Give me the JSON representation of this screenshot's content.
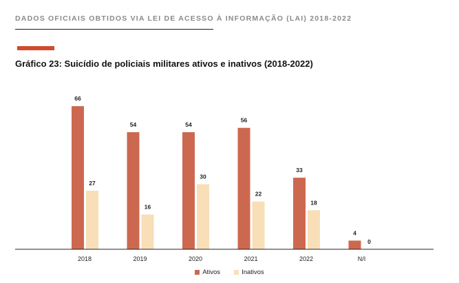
{
  "header": {
    "title": "DADOS OFICIAIS OBTIDOS VIA LEI DE ACESSO À INFORMAÇÃO (LAI) 2018-2022"
  },
  "chart_data": {
    "type": "bar",
    "title": "Gráfico 23: Suicídio de policiais militares ativos e inativos (2018-2022)",
    "categories": [
      "2018",
      "2019",
      "2020",
      "2021",
      "2022",
      "N/I"
    ],
    "series": [
      {
        "name": "Ativos",
        "values": [
          66,
          54,
          54,
          56,
          33,
          4
        ],
        "color": "#cd6850"
      },
      {
        "name": "Inativos",
        "values": [
          27,
          16,
          30,
          22,
          18,
          0
        ],
        "color": "#f8dfb8"
      }
    ],
    "ylim": [
      0,
      70
    ],
    "grid": false,
    "legend_position": "bottom-center",
    "data_labels": true
  },
  "colors": {
    "accent": "#d24a2e",
    "header_text": "#8a8a8a"
  }
}
